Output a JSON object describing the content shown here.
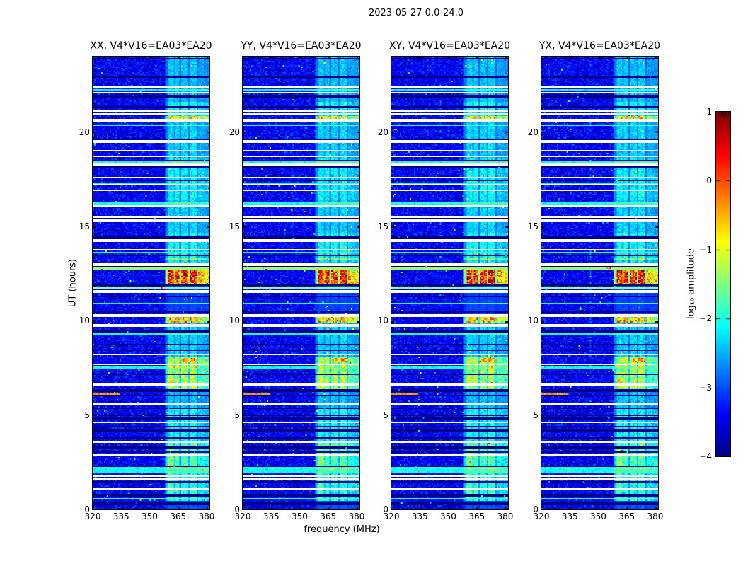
{
  "figure": {
    "title": "2023-05-27 0.0-24.0"
  },
  "chart_data": {
    "type": "heatmap",
    "description": "Four polarization dynamic spectra (spectrograms) of visibility amplitude vs frequency and time, with jet colormap colorbar",
    "panels": [
      {
        "pol": "XX",
        "title": "XX, V4*V16=EA03*EA20"
      },
      {
        "pol": "YY",
        "title": "YY, V4*V16=EA03*EA20"
      },
      {
        "pol": "XY",
        "title": "XY, V4*V16=EA03*EA20"
      },
      {
        "pol": "YX",
        "title": "YX, V4*V16=EA03*EA20"
      }
    ],
    "x": {
      "label": "frequency (MHz)",
      "range": [
        320,
        381.5
      ],
      "ticks": [
        320,
        335,
        350,
        365,
        380
      ],
      "tick_labels": [
        "320",
        "335",
        "350",
        "365",
        "380"
      ]
    },
    "y": {
      "label": "UT (hours)",
      "range": [
        0,
        24
      ],
      "ticks": [
        0,
        5,
        10,
        15,
        20
      ],
      "tick_labels": [
        "0",
        "5",
        "10",
        "15",
        "20"
      ]
    },
    "colorbar": {
      "label": "log₁₀ amplitude",
      "range": [
        -4,
        1
      ],
      "ticks": [
        1,
        0,
        -1,
        -2,
        -3,
        -4
      ],
      "tick_labels": [
        "1",
        "0",
        "−1",
        "−2",
        "−3",
        "−4"
      ],
      "colormap": "jet"
    },
    "background_level": -3.42,
    "band": {
      "freq_range": [
        358.5,
        381.5
      ],
      "profile": [
        [
          358.5,
          359.6,
          0.55
        ],
        [
          359.6,
          362.6,
          1.0
        ],
        [
          362.6,
          363.4,
          0.72
        ],
        [
          363.4,
          365.8,
          1.0
        ],
        [
          365.8,
          366.8,
          0.5
        ],
        [
          366.8,
          370.0,
          0.97
        ],
        [
          370.0,
          371.0,
          0.55
        ],
        [
          371.0,
          374.5,
          1.02
        ],
        [
          374.5,
          375.6,
          0.5
        ],
        [
          375.6,
          378.6,
          0.8
        ],
        [
          378.6,
          381.5,
          0.72
        ]
      ]
    },
    "time_envelope": [
      [
        0,
        0.45,
        0.35
      ],
      [
        0.45,
        2.1,
        1.1
      ],
      [
        2.1,
        3.55,
        1.28
      ],
      [
        3.55,
        5.3,
        1.0
      ],
      [
        5.3,
        6.35,
        0.78
      ],
      [
        6.35,
        7.75,
        1.52
      ],
      [
        7.75,
        8.1,
        1.62
      ],
      [
        8.1,
        9.9,
        0.85
      ],
      [
        9.9,
        10.18,
        2.0
      ],
      [
        10.18,
        11.92,
        0.3
      ],
      [
        11.92,
        12.68,
        2.32
      ],
      [
        12.68,
        13.2,
        1.0
      ],
      [
        13.2,
        13.35,
        1.55
      ],
      [
        13.35,
        14.6,
        1.02
      ],
      [
        14.6,
        16.4,
        0.85
      ],
      [
        16.4,
        18.6,
        0.98
      ],
      [
        18.6,
        20.7,
        0.85
      ],
      [
        20.7,
        20.82,
        1.85
      ],
      [
        20.82,
        21.6,
        1.02
      ],
      [
        21.6,
        24,
        0.8
      ]
    ],
    "stripes": [
      [
        22.4,
        "white",
        0.09
      ],
      [
        22.1,
        "white",
        0.09
      ],
      [
        21.1,
        "white",
        0.09
      ],
      [
        20.95,
        "white",
        0.09
      ],
      [
        20.62,
        "white",
        0.18
      ],
      [
        19.5,
        "white",
        0.09
      ],
      [
        19.0,
        "white",
        0.09
      ],
      [
        18.72,
        "white",
        0.09
      ],
      [
        18.3,
        "white",
        0.09
      ],
      [
        17.6,
        "white",
        0.09
      ],
      [
        17.2,
        "white",
        0.09
      ],
      [
        16.9,
        "white",
        0.09
      ],
      [
        16.1,
        "white",
        0.09
      ],
      [
        15.5,
        "white",
        0.09
      ],
      [
        15.3,
        "white",
        0.09
      ],
      [
        14.25,
        "white",
        0.09
      ],
      [
        13.75,
        "white",
        0.09
      ],
      [
        13.0,
        "white",
        0.16
      ],
      [
        11.55,
        "white",
        0.09
      ],
      [
        10.28,
        "white",
        0.13
      ],
      [
        9.75,
        "white",
        0.09
      ],
      [
        8.2,
        "white",
        0.09
      ],
      [
        7.7,
        "white",
        0.09
      ],
      [
        6.6,
        "white",
        0.09
      ],
      [
        5.6,
        "white",
        0.09
      ],
      [
        4.62,
        "white",
        0.09
      ],
      [
        3.56,
        "white",
        0.09
      ],
      [
        2.9,
        "white",
        0.09
      ],
      [
        1.76,
        "white",
        0.09
      ],
      [
        1.63,
        "white",
        0.09
      ],
      [
        1.07,
        "white",
        0.09
      ],
      [
        23.92,
        "black",
        0.08
      ],
      [
        22.9,
        "black",
        0.08
      ],
      [
        21.9,
        "black",
        0.08
      ],
      [
        21.35,
        "black",
        0.08
      ],
      [
        19.62,
        "black",
        0.08
      ],
      [
        18.5,
        "black",
        0.08
      ],
      [
        18.15,
        "black",
        0.08
      ],
      [
        17.42,
        "black",
        0.08
      ],
      [
        15.45,
        "black",
        0.08
      ],
      [
        14.4,
        "black",
        0.08
      ],
      [
        13.45,
        "black",
        0.08
      ],
      [
        12.85,
        "black",
        0.08
      ],
      [
        11.9,
        "black",
        0.08
      ],
      [
        11.3,
        "black",
        0.08
      ],
      [
        10.45,
        "black",
        0.08
      ],
      [
        9.45,
        "black",
        0.08
      ],
      [
        8.75,
        "black",
        0.08
      ],
      [
        8.45,
        "black",
        0.08
      ],
      [
        7.15,
        "black",
        0.08
      ],
      [
        6.3,
        "black",
        0.08
      ],
      [
        6.02,
        "black",
        0.08
      ],
      [
        5.35,
        "black",
        0.08
      ],
      [
        5.0,
        "black",
        0.08
      ],
      [
        4.8,
        "black",
        0.08
      ],
      [
        4.4,
        "black",
        0.08
      ],
      [
        4.2,
        "black",
        0.08
      ],
      [
        3.8,
        "black",
        0.08
      ],
      [
        3.3,
        "black",
        0.08
      ],
      [
        3.05,
        "black",
        0.08
      ],
      [
        2.32,
        "black",
        0.08
      ],
      [
        1.46,
        "black",
        0.08
      ],
      [
        0.75,
        "black",
        0.08
      ],
      [
        0.3,
        "black",
        0.08
      ],
      [
        22.25,
        "cyan",
        0.1
      ],
      [
        20.35,
        "cyan",
        0.1
      ],
      [
        18.4,
        "cyan",
        0.1
      ],
      [
        17.3,
        "cyan",
        0.1
      ],
      [
        16.2,
        "cyan",
        0.1
      ],
      [
        13.6,
        "cyan",
        0.1
      ],
      [
        10.9,
        "cyan",
        0.1
      ],
      [
        9.3,
        "cyan",
        0.1
      ],
      [
        7.5,
        "cyan",
        0.1
      ],
      [
        2.1,
        "cyan",
        0.28
      ],
      [
        0.55,
        "cyan",
        0.1
      ],
      [
        12.75,
        "green",
        0.08
      ],
      [
        11.72,
        "green",
        0.09
      ]
    ],
    "partial_stripes": [
      {
        "t": 6.12,
        "h": 0.1,
        "f0": 320,
        "f1": 334.5,
        "kind": "orange"
      }
    ],
    "hot_spots": [
      [
        7.8,
        8.05,
        367,
        374.5,
        0.8
      ],
      [
        6.45,
        6.95,
        359,
        363.5,
        0.35
      ],
      [
        2.3,
        3.3,
        359,
        362.8,
        0.3
      ],
      [
        0.6,
        2.1,
        359,
        362,
        0.25
      ],
      [
        12.0,
        12.64,
        360,
        374.8,
        0.12
      ]
    ],
    "persistent_lines": [
      {
        "f": 345.8,
        "dv": 0.55,
        "p": 0.2
      },
      {
        "f": 371.6,
        "dv": 0.35,
        "p": 0.6
      },
      {
        "f": 377.6,
        "dv": 0.4,
        "p": 0.25
      }
    ],
    "colors": {
      "figure_background": "#ffffff",
      "text": "#000000"
    }
  }
}
